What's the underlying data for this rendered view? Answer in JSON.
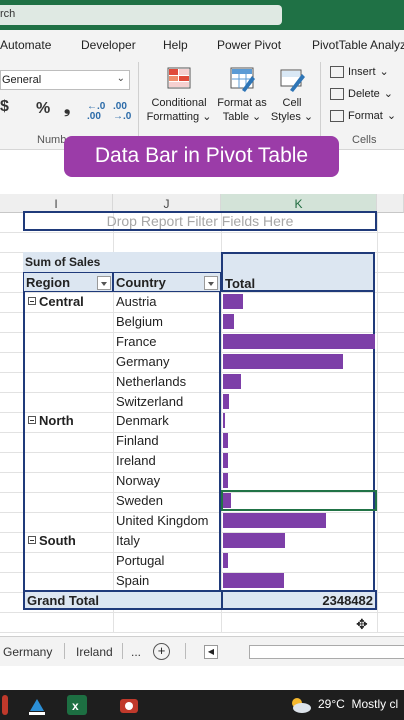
{
  "titlebar": {
    "search_fragment": "rch"
  },
  "ribbon_tabs": [
    "Automate",
    "Developer",
    "Help",
    "Power Pivot",
    "PivotTable Analyz"
  ],
  "ribbon": {
    "number_format": "General",
    "currency_symbol": "$",
    "percent_symbol": "%",
    "comma_symbol": "❟",
    "increase_decimal": "←.0 .00",
    "decrease_decimal": ".00 →.0",
    "number_group_label": "Numb",
    "conditional_formatting": [
      "Conditional",
      "Formatting"
    ],
    "format_as_table": [
      "Format as",
      "Table"
    ],
    "cell_styles": [
      "Cell",
      "Styles"
    ],
    "cells_insert": "Insert",
    "cells_delete": "Delete",
    "cells_format": "Format",
    "cells_group_label": "Cells"
  },
  "banner": {
    "text": "Data Bar in Pivot Table"
  },
  "columns": {
    "i": "I",
    "j": "J",
    "k": "K"
  },
  "pivot": {
    "drop_zone_text": "Drop Report Filter Fields Here",
    "values_header": "Sum of Sales",
    "region_header": "Region",
    "country_header": "Country",
    "total_header": "Total",
    "grand_total_label": "Grand Total",
    "grand_total_value": "2348482"
  },
  "rows": [
    {
      "region": "Central",
      "country": "Austria",
      "bar": 0.13
    },
    {
      "region": "",
      "country": "Belgium",
      "bar": 0.07
    },
    {
      "region": "",
      "country": "France",
      "bar": 1.0
    },
    {
      "region": "",
      "country": "Germany",
      "bar": 0.79
    },
    {
      "region": "",
      "country": "Netherlands",
      "bar": 0.12
    },
    {
      "region": "",
      "country": "Switzerland",
      "bar": 0.04
    },
    {
      "region": "North",
      "country": "Denmark",
      "bar": 0.01
    },
    {
      "region": "",
      "country": "Finland",
      "bar": 0.03
    },
    {
      "region": "",
      "country": "Ireland",
      "bar": 0.03
    },
    {
      "region": "",
      "country": "Norway",
      "bar": 0.03
    },
    {
      "region": "",
      "country": "Sweden",
      "bar": 0.05
    },
    {
      "region": "",
      "country": "United Kingdom",
      "bar": 0.68
    },
    {
      "region": "South",
      "country": "Italy",
      "bar": 0.41
    },
    {
      "region": "",
      "country": "Portugal",
      "bar": 0.03
    },
    {
      "region": "",
      "country": "Spain",
      "bar": 0.4
    }
  ],
  "sheet_tabs": [
    "Germany",
    "Ireland",
    "..."
  ],
  "add_sheet": "+",
  "taskbar": {
    "temperature": "29°C",
    "weather": "Mostly cl"
  },
  "colors": {
    "bar": "#7d3fa8",
    "excel_green": "#1f7145",
    "banner": "#9b3ca8",
    "pivot_header": "#dce6f1"
  }
}
